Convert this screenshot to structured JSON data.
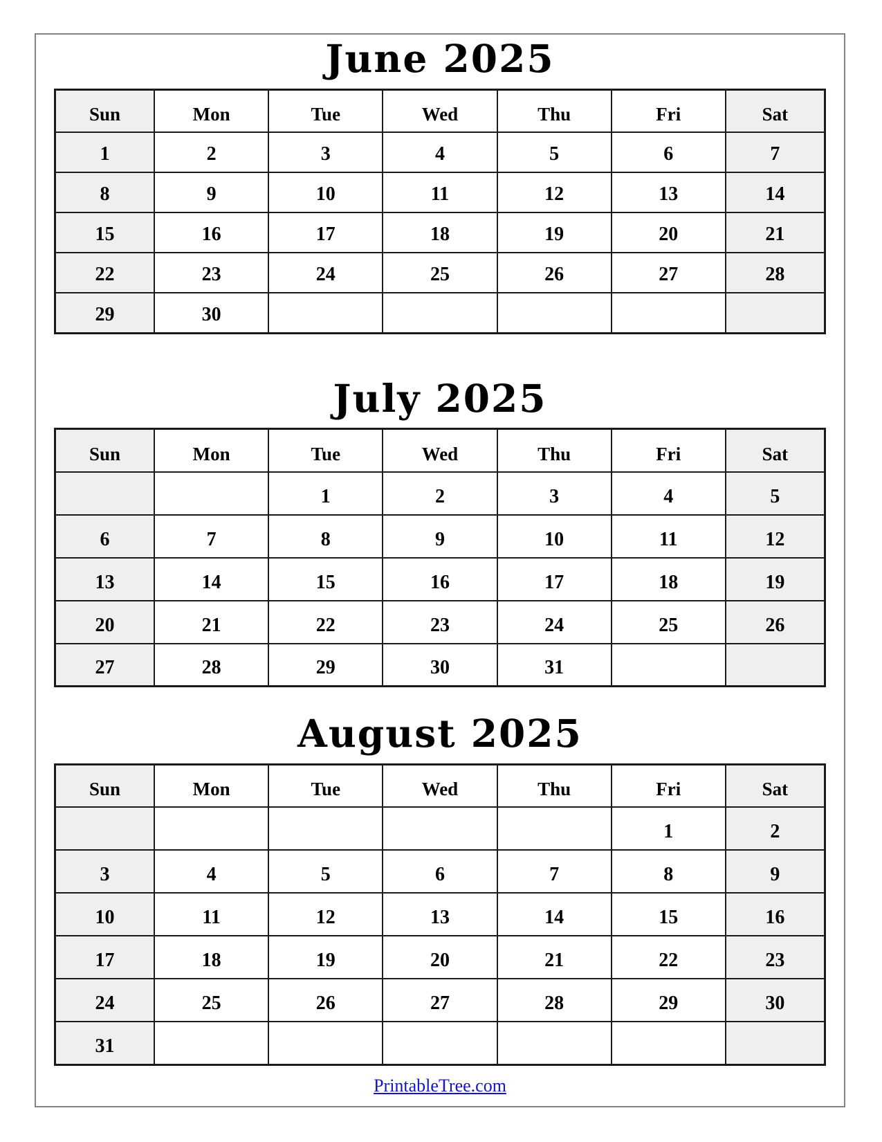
{
  "page": {
    "footer_link": "PrintableTree.com"
  },
  "colors": {
    "weekend_text": "#b01010",
    "weekend_bg": "#f0efef",
    "grid": "#1a1a1a",
    "frame": "#828282",
    "link": "#1414cc",
    "title": "#000000"
  },
  "calendars": [
    {
      "id": "june",
      "title": "June 2025",
      "day_headers": [
        "Sun",
        "Mon",
        "Tue",
        "Wed",
        "Thu",
        "Fri",
        "Sat"
      ],
      "weeks": [
        [
          "1",
          "2",
          "3",
          "4",
          "5",
          "6",
          "7"
        ],
        [
          "8",
          "9",
          "10",
          "11",
          "12",
          "13",
          "14"
        ],
        [
          "15",
          "16",
          "17",
          "18",
          "19",
          "20",
          "21"
        ],
        [
          "22",
          "23",
          "24",
          "25",
          "26",
          "27",
          "28"
        ],
        [
          "29",
          "30",
          "",
          "",
          "",
          "",
          ""
        ]
      ]
    },
    {
      "id": "july",
      "title": "July 2025",
      "day_headers": [
        "Sun",
        "Mon",
        "Tue",
        "Wed",
        "Thu",
        "Fri",
        "Sat"
      ],
      "weeks": [
        [
          "",
          "",
          "1",
          "2",
          "3",
          "4",
          "5"
        ],
        [
          "6",
          "7",
          "8",
          "9",
          "10",
          "11",
          "12"
        ],
        [
          "13",
          "14",
          "15",
          "16",
          "17",
          "18",
          "19"
        ],
        [
          "20",
          "21",
          "22",
          "23",
          "24",
          "25",
          "26"
        ],
        [
          "27",
          "28",
          "29",
          "30",
          "31",
          "",
          ""
        ]
      ]
    },
    {
      "id": "august",
      "title": "August 2025",
      "day_headers": [
        "Sun",
        "Mon",
        "Tue",
        "Wed",
        "Thu",
        "Fri",
        "Sat"
      ],
      "weeks": [
        [
          "",
          "",
          "",
          "",
          "",
          "1",
          "2"
        ],
        [
          "3",
          "4",
          "5",
          "6",
          "7",
          "8",
          "9"
        ],
        [
          "10",
          "11",
          "12",
          "13",
          "14",
          "15",
          "16"
        ],
        [
          "17",
          "18",
          "19",
          "20",
          "21",
          "22",
          "23"
        ],
        [
          "24",
          "25",
          "26",
          "27",
          "28",
          "29",
          "30"
        ],
        [
          "31",
          "",
          "",
          "",
          "",
          "",
          ""
        ]
      ]
    }
  ]
}
